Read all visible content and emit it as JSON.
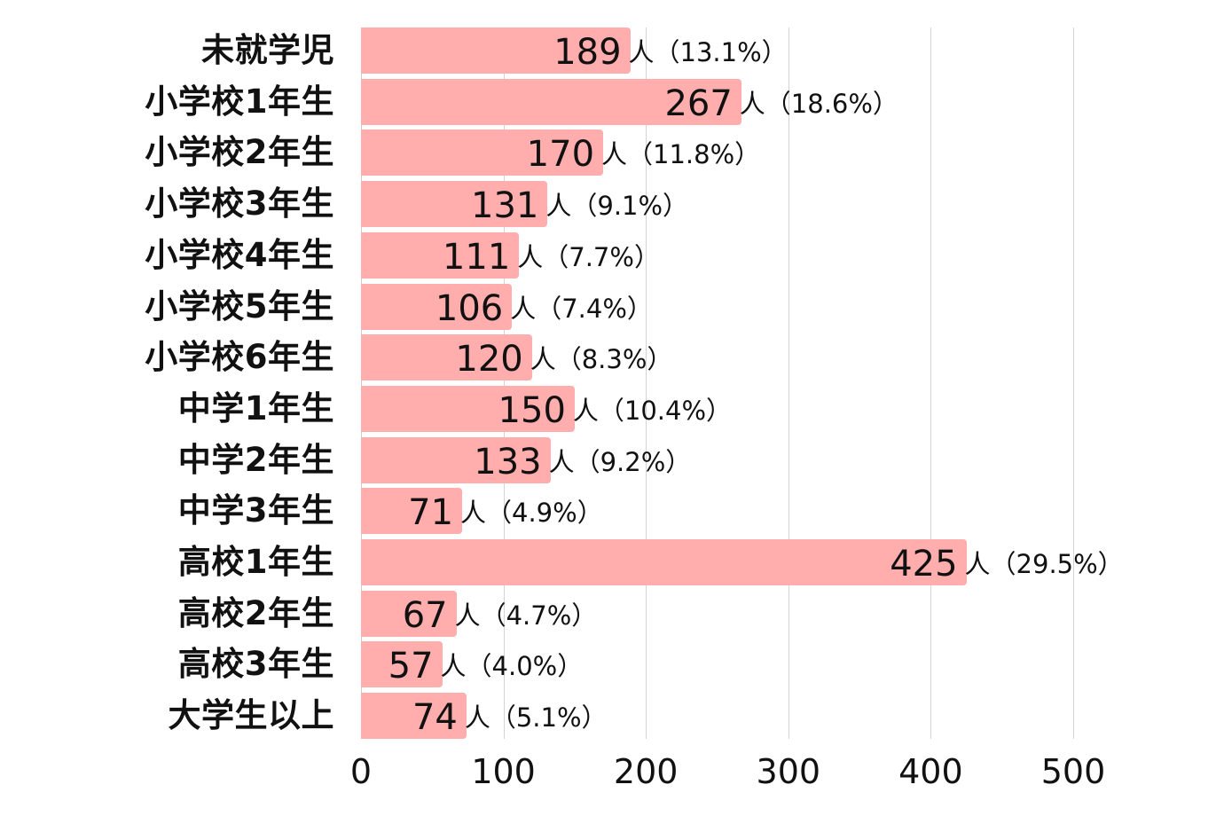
{
  "chart_data": {
    "type": "bar",
    "orientation": "horizontal",
    "title": "",
    "xlabel": "",
    "ylabel": "",
    "xlim": [
      0,
      500
    ],
    "xticks": [
      0,
      100,
      200,
      300,
      400,
      500
    ],
    "grid": true,
    "bar_color": "#FFADAD",
    "categories": [
      "未就学児",
      "小学校1年生",
      "小学校2年生",
      "小学校3年生",
      "小学校4年生",
      "小学校5年生",
      "小学校6年生",
      "中学1年生",
      "中学2年生",
      "中学3年生",
      "高校1年生",
      "高校2年生",
      "高校3年生",
      "大学生以上"
    ],
    "values": [
      189,
      267,
      170,
      131,
      111,
      106,
      120,
      150,
      133,
      71,
      425,
      67,
      57,
      74
    ],
    "percentages": [
      "13.1%",
      "18.6%",
      "11.8%",
      "9.1%",
      "7.7%",
      "7.4%",
      "8.3%",
      "10.4%",
      "9.2%",
      "4.9%",
      "29.5%",
      "4.7%",
      "4.0%",
      "5.1%"
    ],
    "unit": "人"
  },
  "rows": [
    {
      "label": "未就学児",
      "value": "189",
      "suffix": "人（13.1%）",
      "num": 189
    },
    {
      "label": "小学校1年生",
      "value": "267",
      "suffix": "人（18.6%）",
      "num": 267
    },
    {
      "label": "小学校2年生",
      "value": "170",
      "suffix": "人（11.8%）",
      "num": 170
    },
    {
      "label": "小学校3年生",
      "value": "131",
      "suffix": "人（9.1%）",
      "num": 131
    },
    {
      "label": "小学校4年生",
      "value": "111",
      "suffix": "人（7.7%）",
      "num": 111
    },
    {
      "label": "小学校5年生",
      "value": "106",
      "suffix": "人（7.4%）",
      "num": 106
    },
    {
      "label": "小学校6年生",
      "value": "120",
      "suffix": "人（8.3%）",
      "num": 120
    },
    {
      "label": "中学1年生",
      "value": "150",
      "suffix": "人（10.4%）",
      "num": 150
    },
    {
      "label": "中学2年生",
      "value": "133",
      "suffix": "人（9.2%）",
      "num": 133
    },
    {
      "label": "中学3年生",
      "value": "71",
      "suffix": "人（4.9%）",
      "num": 71
    },
    {
      "label": "高校1年生",
      "value": "425",
      "suffix": "人（29.5%）",
      "num": 425
    },
    {
      "label": "高校2年生",
      "value": "67",
      "suffix": "人（4.7%）",
      "num": 67
    },
    {
      "label": "高校3年生",
      "value": "57",
      "suffix": "人（4.0%）",
      "num": 57
    },
    {
      "label": "大学生以上",
      "value": "74",
      "suffix": "人（5.1%）",
      "num": 74
    }
  ],
  "axis": {
    "ticks": [
      "0",
      "100",
      "200",
      "300",
      "400",
      "500"
    ]
  }
}
